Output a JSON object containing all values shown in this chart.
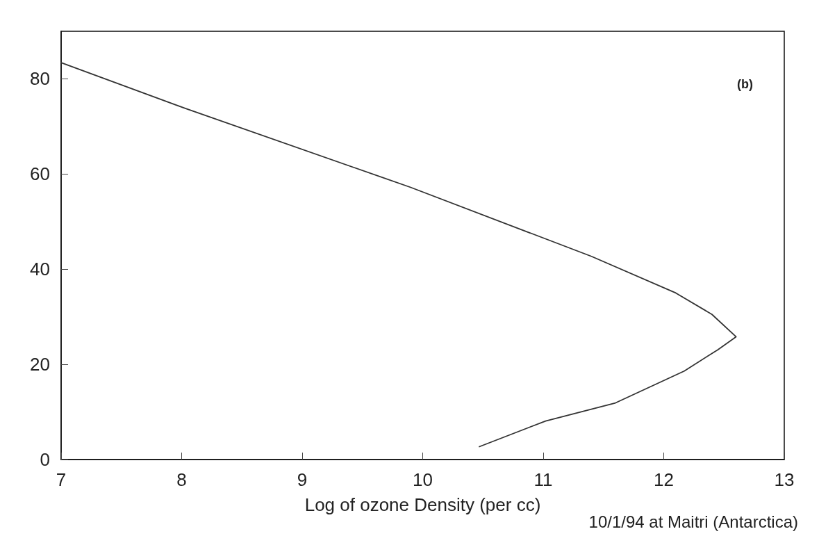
{
  "chart_data": {
    "type": "line",
    "xlabel": "Log of ozone Density (per cc)",
    "series": [
      {
        "color": "#333333",
        "x": [
          7.0,
          8.03,
          9.9,
          11.4,
          12.1,
          12.4,
          12.6,
          12.45,
          12.17,
          11.6,
          11.02,
          10.47
        ],
        "values": [
          83.4,
          73.8,
          57.2,
          42.7,
          35.0,
          30.5,
          25.8,
          23.1,
          18.6,
          11.9,
          8.1,
          2.7
        ]
      }
    ],
    "xlim": [
      7,
      13
    ],
    "xticks": [
      7,
      8,
      9,
      10,
      11,
      12,
      13
    ],
    "ylim": [
      0,
      90
    ],
    "yticks": [
      0,
      20,
      40,
      60,
      80
    ],
    "grid": false,
    "marker": "none",
    "line_style": "solid",
    "annotations": [
      "(b)",
      "10/1/94 at Maitri (Antarctica)"
    ]
  }
}
